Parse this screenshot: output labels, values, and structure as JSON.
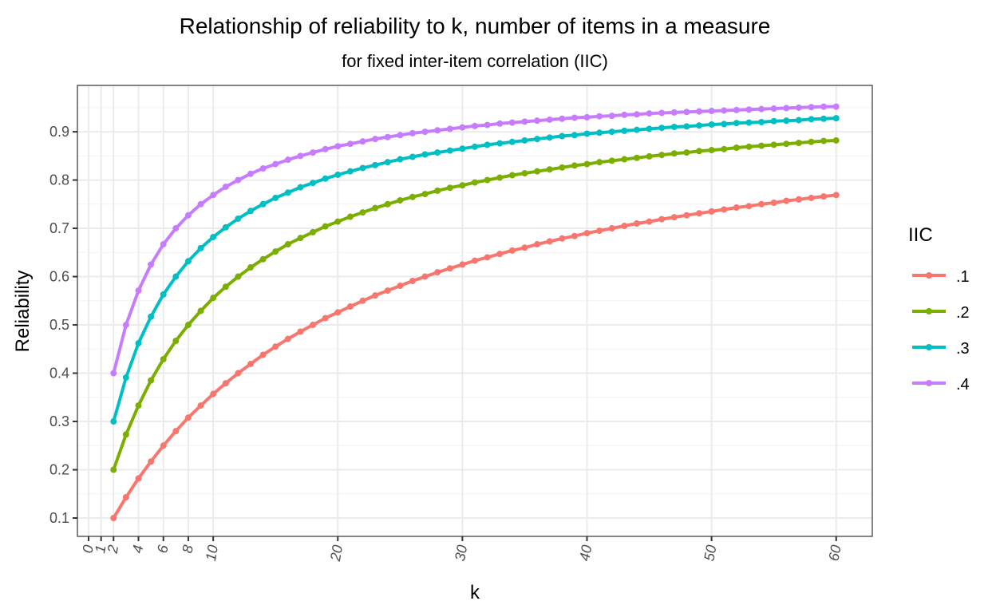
{
  "chart_data": {
    "type": "line",
    "title": "Relationship of reliability to k, number of items in a measure",
    "subtitle": "for fixed inter-item correlation (IIC)",
    "xlabel": "k",
    "ylabel": "Reliability",
    "xlim": [
      -0.9,
      62.9
    ],
    "ylim": [
      0.062,
      0.996
    ],
    "x_ticks": [
      0,
      1,
      2,
      4,
      6,
      8,
      10,
      20,
      30,
      40,
      50,
      60
    ],
    "y_ticks": [
      0.1,
      0.2,
      0.3,
      0.4,
      0.5,
      0.6,
      0.7,
      0.8,
      0.9
    ],
    "y_tick_labels": [
      "0.1",
      "0.2",
      "0.3",
      "0.4",
      "0.5",
      "0.6",
      "0.7",
      "0.8",
      "0.9"
    ],
    "grid": true,
    "legend": {
      "title": "IIC",
      "position": "right"
    },
    "x": [
      2,
      3,
      4,
      5,
      6,
      7,
      8,
      9,
      10,
      11,
      12,
      13,
      14,
      15,
      16,
      17,
      18,
      19,
      20,
      21,
      22,
      23,
      24,
      25,
      26,
      27,
      28,
      29,
      30,
      31,
      32,
      33,
      34,
      35,
      36,
      37,
      38,
      39,
      40,
      41,
      42,
      43,
      44,
      45,
      46,
      47,
      48,
      49,
      50,
      51,
      52,
      53,
      54,
      55,
      56,
      57,
      58,
      59,
      60
    ],
    "series": [
      {
        "name": ".1",
        "color": "#F8766D",
        "values": [
          0.1,
          0.143,
          0.182,
          0.217,
          0.25,
          0.28,
          0.308,
          0.333,
          0.357,
          0.379,
          0.4,
          0.419,
          0.438,
          0.455,
          0.471,
          0.486,
          0.5,
          0.514,
          0.526,
          0.538,
          0.55,
          0.561,
          0.571,
          0.581,
          0.591,
          0.6,
          0.609,
          0.617,
          0.625,
          0.633,
          0.64,
          0.647,
          0.654,
          0.66,
          0.667,
          0.673,
          0.679,
          0.684,
          0.69,
          0.695,
          0.7,
          0.705,
          0.71,
          0.714,
          0.719,
          0.723,
          0.727,
          0.731,
          0.735,
          0.739,
          0.743,
          0.746,
          0.75,
          0.753,
          0.757,
          0.76,
          0.763,
          0.766,
          0.769
        ]
      },
      {
        "name": ".2",
        "color": "#7CAE00",
        "values": [
          0.2,
          0.273,
          0.333,
          0.385,
          0.429,
          0.467,
          0.5,
          0.529,
          0.556,
          0.579,
          0.6,
          0.619,
          0.636,
          0.652,
          0.667,
          0.68,
          0.692,
          0.704,
          0.714,
          0.724,
          0.733,
          0.742,
          0.75,
          0.758,
          0.765,
          0.771,
          0.778,
          0.784,
          0.789,
          0.795,
          0.8,
          0.805,
          0.81,
          0.814,
          0.818,
          0.822,
          0.826,
          0.83,
          0.833,
          0.837,
          0.84,
          0.843,
          0.846,
          0.849,
          0.852,
          0.855,
          0.857,
          0.86,
          0.862,
          0.864,
          0.867,
          0.869,
          0.871,
          0.873,
          0.875,
          0.877,
          0.879,
          0.881,
          0.882
        ]
      },
      {
        "name": ".3",
        "color": "#00BFC4",
        "values": [
          0.3,
          0.391,
          0.462,
          0.517,
          0.563,
          0.6,
          0.632,
          0.659,
          0.682,
          0.702,
          0.72,
          0.736,
          0.75,
          0.763,
          0.774,
          0.785,
          0.794,
          0.803,
          0.811,
          0.818,
          0.825,
          0.831,
          0.837,
          0.843,
          0.848,
          0.853,
          0.857,
          0.861,
          0.865,
          0.869,
          0.873,
          0.876,
          0.879,
          0.882,
          0.885,
          0.888,
          0.891,
          0.893,
          0.896,
          0.898,
          0.9,
          0.902,
          0.904,
          0.906,
          0.908,
          0.91,
          0.911,
          0.913,
          0.915,
          0.916,
          0.918,
          0.919,
          0.92,
          0.922,
          0.923,
          0.924,
          0.926,
          0.927,
          0.928
        ]
      },
      {
        "name": ".4",
        "color": "#C77CFF",
        "values": [
          0.4,
          0.5,
          0.571,
          0.625,
          0.667,
          0.7,
          0.727,
          0.75,
          0.769,
          0.786,
          0.8,
          0.813,
          0.824,
          0.833,
          0.842,
          0.85,
          0.857,
          0.864,
          0.87,
          0.875,
          0.88,
          0.885,
          0.889,
          0.893,
          0.897,
          0.9,
          0.903,
          0.906,
          0.909,
          0.912,
          0.914,
          0.917,
          0.919,
          0.921,
          0.923,
          0.925,
          0.927,
          0.929,
          0.93,
          0.932,
          0.933,
          0.935,
          0.936,
          0.938,
          0.939,
          0.94,
          0.941,
          0.942,
          0.943,
          0.944,
          0.945,
          0.946,
          0.947,
          0.948,
          0.949,
          0.95,
          0.951,
          0.952,
          0.952
        ]
      }
    ]
  }
}
